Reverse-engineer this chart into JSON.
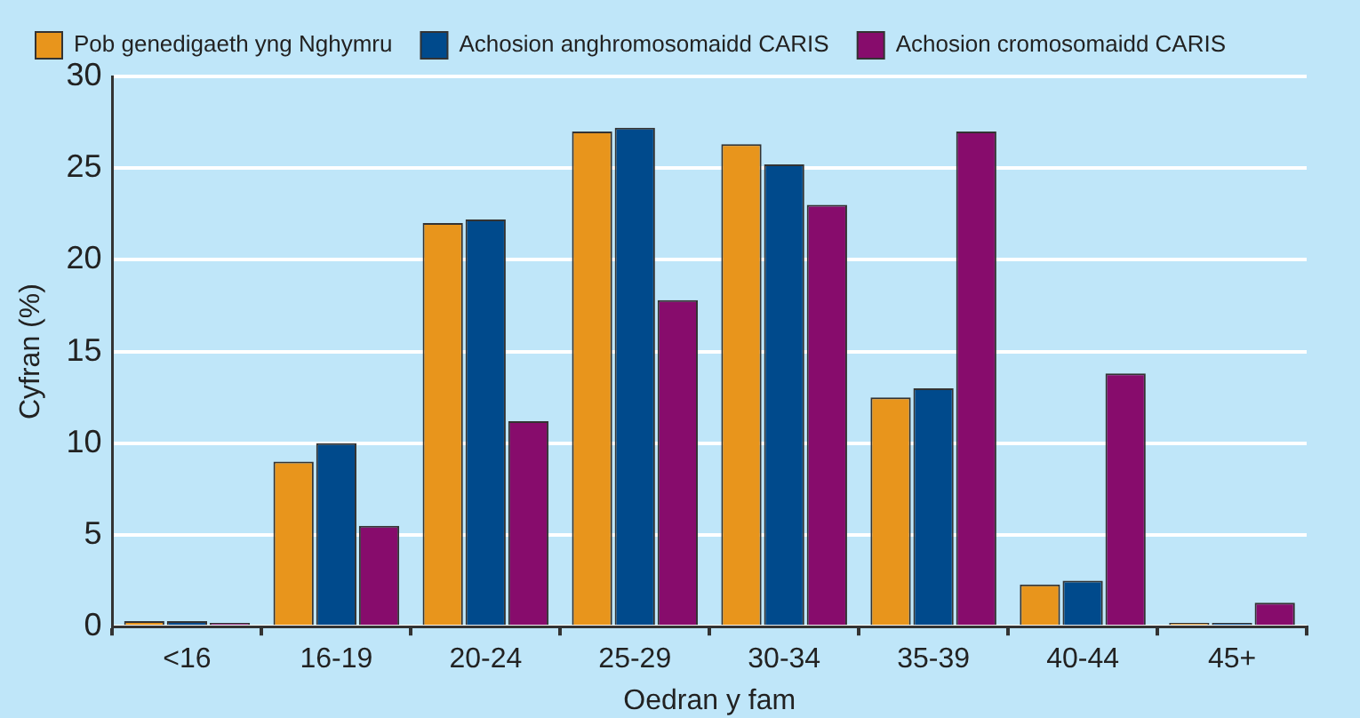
{
  "chart_data": {
    "type": "bar",
    "xlabel": "Oedran y fam",
    "ylabel": "Cyfran (%)",
    "categories": [
      "<16",
      "16-19",
      "20-24",
      "25-29",
      "30-34",
      "35-39",
      "40-44",
      "45+"
    ],
    "series": [
      {
        "name": "Pob genedigaeth yng Nghymru",
        "color": "#e8951c",
        "values": [
          0.3,
          9.0,
          22.0,
          27.0,
          26.3,
          12.5,
          2.3,
          0.2
        ]
      },
      {
        "name": "Achosion anghromosomaidd CARIS",
        "color": "#004a8c",
        "values": [
          0.3,
          10.0,
          22.2,
          27.2,
          25.2,
          13.0,
          2.5,
          0.2
        ]
      },
      {
        "name": "Achosion cromosomaidd CARIS",
        "color": "#870c6c",
        "values": [
          0.2,
          5.5,
          11.2,
          17.8,
          23.0,
          27.0,
          13.8,
          1.3
        ]
      }
    ],
    "ylim": [
      0,
      30
    ],
    "yticks": [
      0,
      5,
      10,
      15,
      20,
      25,
      30
    ],
    "grid": "y",
    "legend": "top left"
  }
}
